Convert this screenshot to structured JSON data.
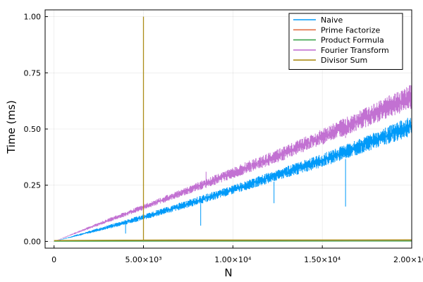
{
  "chart_data": {
    "type": "line",
    "title": "",
    "xlabel": "N",
    "ylabel": "Time (ms)",
    "xlim": [
      -500,
      20000
    ],
    "ylim": [
      -0.03,
      1.03
    ],
    "grid": true,
    "legend_position": "top-right",
    "x_ticks": [
      {
        "value": 0,
        "label": "0"
      },
      {
        "value": 5000,
        "label": "5.00×10³"
      },
      {
        "value": 10000,
        "label": "1.00×10⁴"
      },
      {
        "value": 15000,
        "label": "1.50×10⁴"
      },
      {
        "value": 20000,
        "label": "2.00×10⁴"
      }
    ],
    "y_ticks": [
      {
        "value": 0,
        "label": "0.00"
      },
      {
        "value": 0.25,
        "label": "0.25"
      },
      {
        "value": 0.5,
        "label": "0.50"
      },
      {
        "value": 0.75,
        "label": "0.75"
      },
      {
        "value": 1.0,
        "label": "1.00"
      }
    ],
    "series": [
      {
        "name": "Naive",
        "color": "#009af9",
        "style": "band",
        "x": [
          0,
          2500,
          5000,
          7500,
          10000,
          12500,
          15000,
          17500,
          20000
        ],
        "lower": [
          0,
          0.045,
          0.095,
          0.15,
          0.21,
          0.27,
          0.33,
          0.4,
          0.47
        ],
        "upper": [
          0,
          0.06,
          0.12,
          0.185,
          0.25,
          0.32,
          0.39,
          0.47,
          0.56
        ],
        "spikes": [
          {
            "x": 4000,
            "y": 0.035
          },
          {
            "x": 8200,
            "y": 0.07
          },
          {
            "x": 12300,
            "y": 0.17
          },
          {
            "x": 16300,
            "y": 0.155
          },
          {
            "x": 19200,
            "y": 0.48
          }
        ]
      },
      {
        "name": "Prime Factorize",
        "color": "#e26f46",
        "style": "line",
        "x": [
          0,
          20000
        ],
        "y": [
          0.002,
          0.003
        ]
      },
      {
        "name": "Product Formula",
        "color": "#3da44d",
        "style": "line",
        "x": [
          0,
          20000
        ],
        "y": [
          0.001,
          0.002
        ]
      },
      {
        "name": "Fourier Transform",
        "color": "#c271d2",
        "style": "band",
        "x": [
          0,
          2500,
          5000,
          7500,
          10000,
          12500,
          15000,
          17500,
          20000
        ],
        "lower": [
          0,
          0.07,
          0.14,
          0.21,
          0.28,
          0.35,
          0.43,
          0.51,
          0.59
        ],
        "upper": [
          0,
          0.085,
          0.165,
          0.245,
          0.33,
          0.41,
          0.5,
          0.6,
          0.7
        ],
        "spikes": [
          {
            "x": 8500,
            "y": 0.31
          },
          {
            "x": 16300,
            "y": 0.46
          }
        ]
      },
      {
        "name": "Divisor Sum",
        "color": "#ac8d18",
        "style": "line",
        "x": [
          0,
          5000,
          5000,
          5000,
          20000
        ],
        "y": [
          0.004,
          0.006,
          1.0,
          0.006,
          0.007
        ]
      }
    ]
  }
}
